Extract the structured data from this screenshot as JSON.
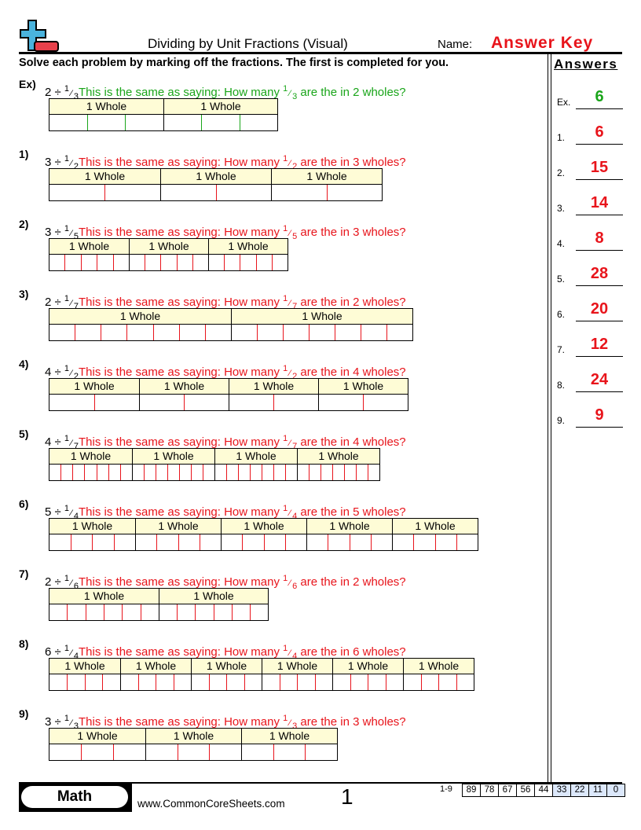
{
  "header": {
    "title": "Dividing by Unit Fractions (Visual)",
    "name_label": "Name:",
    "name_value": "Answer Key",
    "instructions": "Solve each problem by marking off the fractions. The first is completed for you.",
    "logo_icon": "plus-minus-logo",
    "logo_colors": {
      "plus": "#4ab3dd",
      "minus": "#e8414b"
    }
  },
  "colors": {
    "example": "#1aa51a",
    "answer": "#e8141b",
    "whole_fill": "#fefcd6"
  },
  "problems": [
    {
      "label": "Ex)",
      "dividend": "2",
      "divide_sign": "÷",
      "numerator": "1",
      "denominator": "3",
      "lead": "This is the same as saying: How many ",
      "tail": " are the in 2 wholes?",
      "whole_label": "1 Whole",
      "wholes": 2,
      "example": true
    },
    {
      "label": "1)",
      "dividend": "3",
      "divide_sign": "÷",
      "numerator": "1",
      "denominator": "2",
      "lead": "This is the same as saying: How many ",
      "tail": " are the in 3 wholes?",
      "whole_label": "1 Whole",
      "wholes": 3
    },
    {
      "label": "2)",
      "dividend": "3",
      "divide_sign": "÷",
      "numerator": "1",
      "denominator": "5",
      "lead": "This is the same as saying: How many ",
      "tail": " are the in 3 wholes?",
      "whole_label": "1 Whole",
      "wholes": 3
    },
    {
      "label": "3)",
      "dividend": "2",
      "divide_sign": "÷",
      "numerator": "1",
      "denominator": "7",
      "lead": "This is the same as saying: How many ",
      "tail": " are the in 2 wholes?",
      "whole_label": "1 Whole",
      "wholes": 2
    },
    {
      "label": "4)",
      "dividend": "4",
      "divide_sign": "÷",
      "numerator": "1",
      "denominator": "2",
      "lead": "This is the same as saying: How many ",
      "tail": " are the in 4 wholes?",
      "whole_label": "1 Whole",
      "wholes": 4
    },
    {
      "label": "5)",
      "dividend": "4",
      "divide_sign": "÷",
      "numerator": "1",
      "denominator": "7",
      "lead": "This is the same as saying: How many ",
      "tail": " are the in 4 wholes?",
      "whole_label": "1 Whole",
      "wholes": 4
    },
    {
      "label": "6)",
      "dividend": "5",
      "divide_sign": "÷",
      "numerator": "1",
      "denominator": "4",
      "lead": "This is the same as saying: How many ",
      "tail": " are the in 5 wholes?",
      "whole_label": "1 Whole",
      "wholes": 5
    },
    {
      "label": "7)",
      "dividend": "2",
      "divide_sign": "÷",
      "numerator": "1",
      "denominator": "6",
      "lead": "This is the same as saying: How many ",
      "tail": " are the in 2 wholes?",
      "whole_label": "1 Whole",
      "wholes": 2
    },
    {
      "label": "8)",
      "dividend": "6",
      "divide_sign": "÷",
      "numerator": "1",
      "denominator": "4",
      "lead": "This is the same as saying: How many ",
      "tail": " are the in 6 wholes?",
      "whole_label": "1 Whole",
      "wholes": 6
    },
    {
      "label": "9)",
      "dividend": "3",
      "divide_sign": "÷",
      "numerator": "1",
      "denominator": "3",
      "lead": "This is the same as saying: How many ",
      "tail": " are the in 3 wholes?",
      "whole_label": "1 Whole",
      "wholes": 3
    }
  ],
  "answers": {
    "heading": "Answers",
    "items": [
      {
        "label": "Ex.",
        "value": "6"
      },
      {
        "label": "1.",
        "value": "6"
      },
      {
        "label": "2.",
        "value": "15"
      },
      {
        "label": "3.",
        "value": "14"
      },
      {
        "label": "4.",
        "value": "8"
      },
      {
        "label": "5.",
        "value": "28"
      },
      {
        "label": "6.",
        "value": "20"
      },
      {
        "label": "7.",
        "value": "12"
      },
      {
        "label": "8.",
        "value": "24"
      },
      {
        "label": "9.",
        "value": "9"
      }
    ]
  },
  "footer": {
    "subject": "Math",
    "website": "www.CommonCoreSheets.com",
    "page_number": "1",
    "score_label": "1-9",
    "scores": [
      "89",
      "78",
      "67",
      "56",
      "44",
      "33",
      "22",
      "11",
      "0"
    ]
  }
}
